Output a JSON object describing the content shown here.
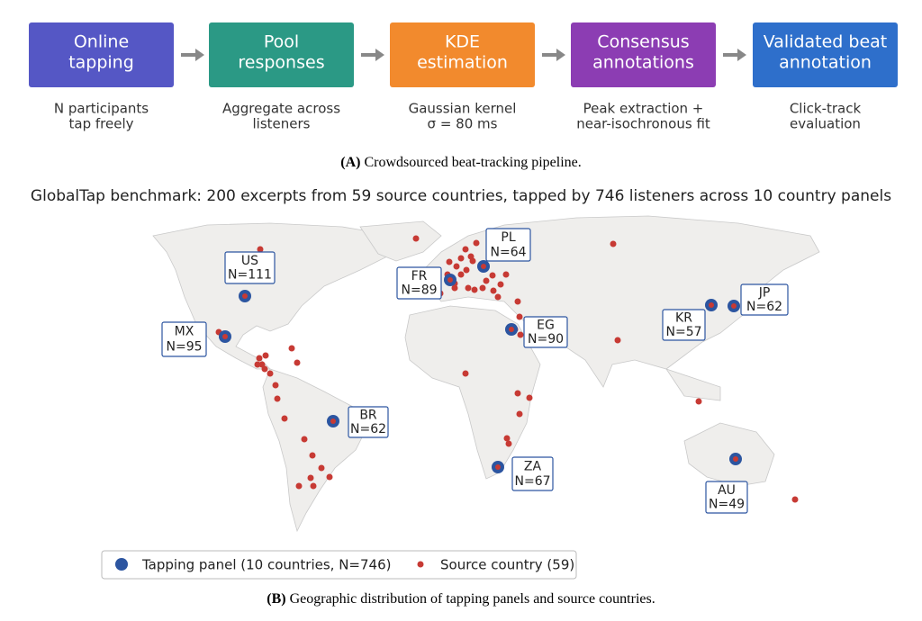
{
  "pipeline": [
    {
      "title": [
        "Online",
        "tapping"
      ],
      "desc": [
        "N participants",
        "tap freely"
      ]
    },
    {
      "title": [
        "Pool",
        "responses"
      ],
      "desc": [
        "Aggregate across",
        "listeners"
      ]
    },
    {
      "title": [
        "KDE",
        "estimation"
      ],
      "desc": [
        "Gaussian kernel",
        "σ = 80 ms"
      ]
    },
    {
      "title": [
        "Consensus",
        "annotations"
      ],
      "desc": [
        "Peak extraction +",
        "near-isochronous fit"
      ]
    },
    {
      "title": [
        "Validated beat",
        "annotation"
      ],
      "desc": [
        "Click-track",
        "evaluation"
      ]
    }
  ],
  "caption_a": {
    "label": "(A)",
    "text": "Crowdsourced beat-tracking pipeline."
  },
  "map": {
    "title": "GlobalTap benchmark: 200 excerpts from 59 source countries, tapped by 746 listeners across 10 country panels",
    "panels": [
      {
        "code": "US",
        "n": "N=111"
      },
      {
        "code": "MX",
        "n": "N=95"
      },
      {
        "code": "FR",
        "n": "N=89"
      },
      {
        "code": "PL",
        "n": "N=64"
      },
      {
        "code": "EG",
        "n": "N=90"
      },
      {
        "code": "KR",
        "n": "N=57"
      },
      {
        "code": "JP",
        "n": "N=62"
      },
      {
        "code": "BR",
        "n": "N=62"
      },
      {
        "code": "ZA",
        "n": "N=67"
      },
      {
        "code": "AU",
        "n": "N=49"
      }
    ],
    "legend": [
      "Tapping panel (10 countries, N=746)",
      "Source country (59)"
    ]
  },
  "caption_b": {
    "label": "(B)",
    "text": "Geographic distribution of tapping panels and source countries."
  }
}
